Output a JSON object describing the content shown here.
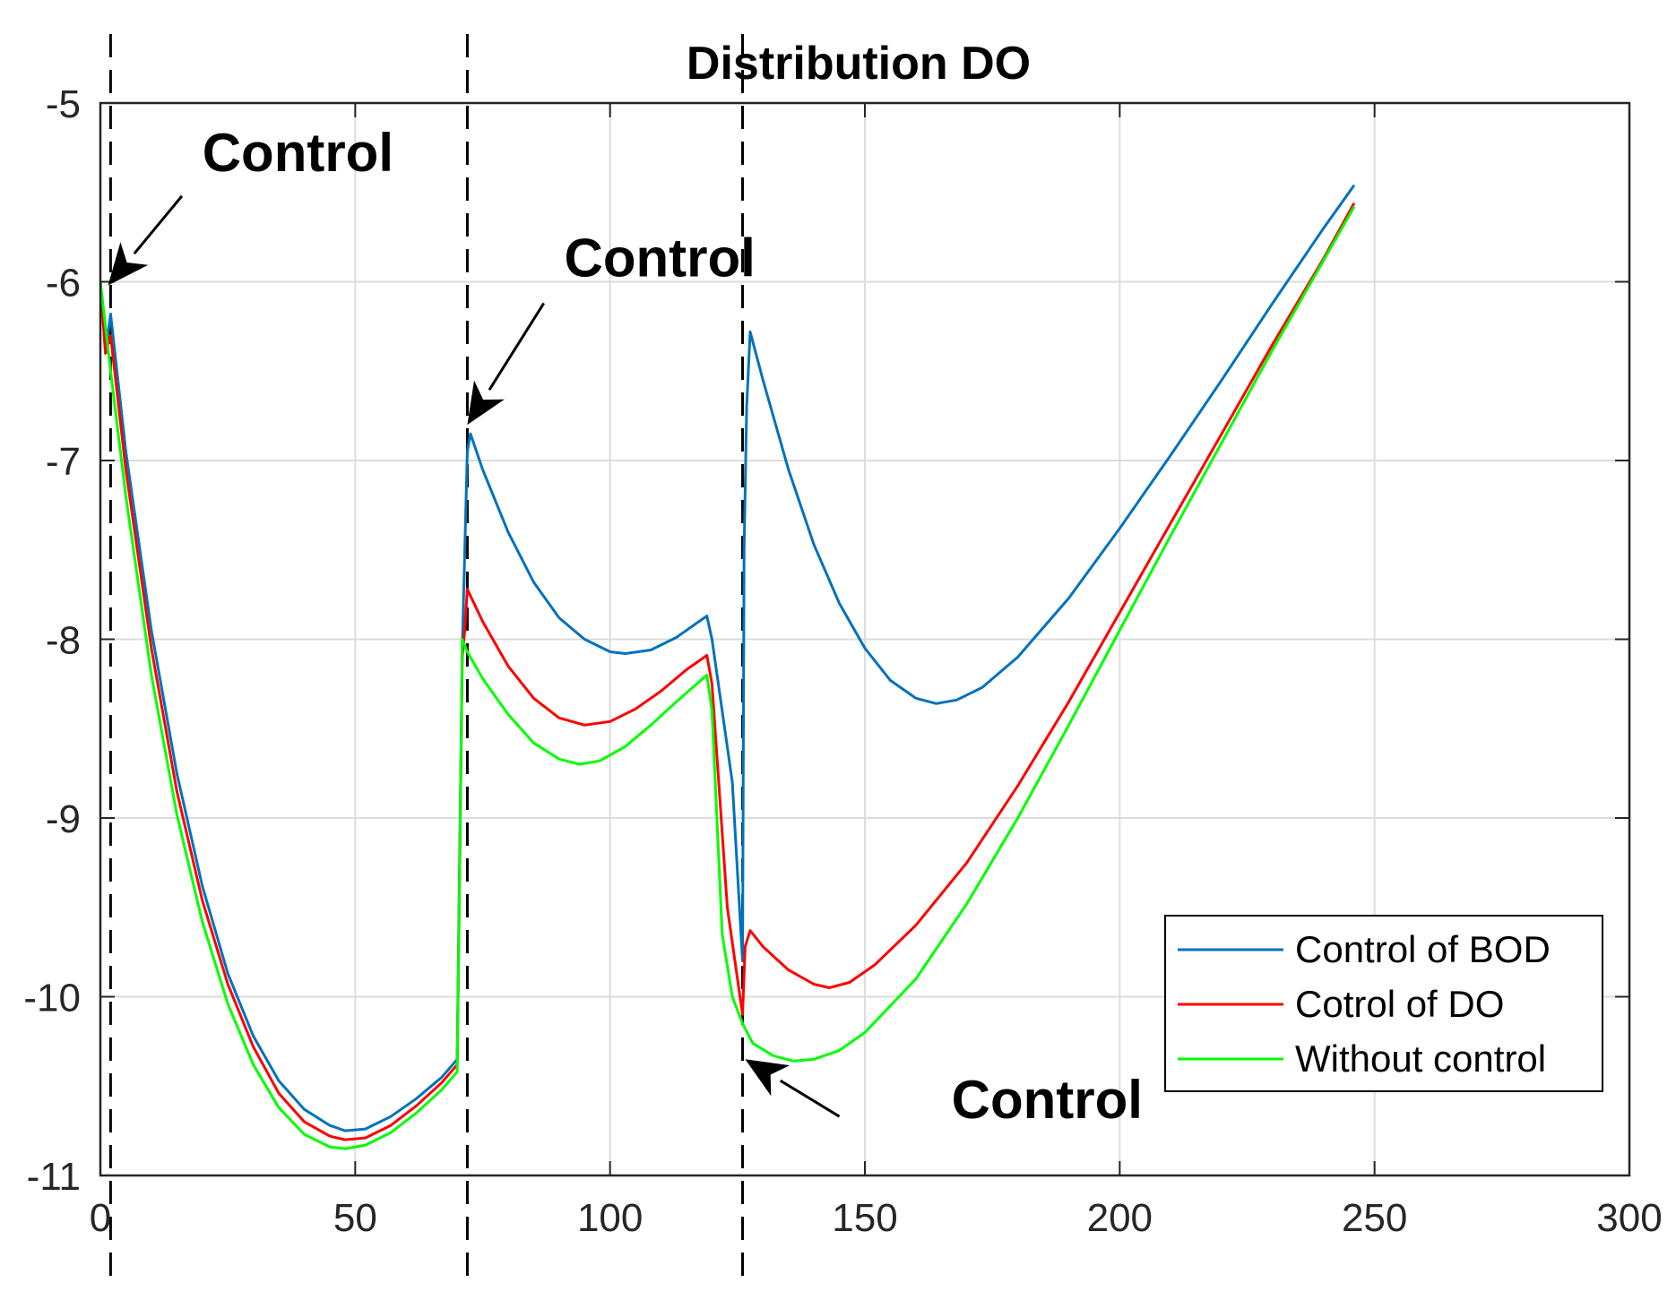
{
  "chart_data": {
    "type": "line",
    "title": "Distribution DO",
    "xlabel": "",
    "ylabel": "",
    "xlim": [
      0,
      300
    ],
    "ylim": [
      -11,
      -5
    ],
    "xticks": [
      0,
      50,
      100,
      150,
      200,
      250,
      300
    ],
    "yticks": [
      -11,
      -10,
      -9,
      -8,
      -7,
      -6,
      -5
    ],
    "xtick_labels": [
      "0",
      "50",
      "100",
      "150",
      "200",
      "250",
      "300"
    ],
    "ytick_labels": [
      "-11",
      "-10",
      "-9",
      "-8",
      "-7",
      "-6",
      "-5"
    ],
    "grid": true,
    "legend_position": "bottom-right",
    "series": [
      {
        "name": "Control of BOD",
        "color": "#0072BD",
        "points": [
          [
            0,
            -6.0
          ],
          [
            1,
            -6.4
          ],
          [
            2,
            -6.18
          ],
          [
            5,
            -6.95
          ],
          [
            10,
            -7.95
          ],
          [
            15,
            -8.75
          ],
          [
            20,
            -9.38
          ],
          [
            25,
            -9.87
          ],
          [
            30,
            -10.22
          ],
          [
            35,
            -10.47
          ],
          [
            40,
            -10.63
          ],
          [
            45,
            -10.72
          ],
          [
            48,
            -10.75
          ],
          [
            52,
            -10.74
          ],
          [
            57,
            -10.67
          ],
          [
            62,
            -10.57
          ],
          [
            67,
            -10.45
          ],
          [
            70,
            -10.35
          ],
          [
            70.5,
            -9.2
          ],
          [
            71,
            -8.05
          ],
          [
            72,
            -6.95
          ],
          [
            72.6,
            -6.85
          ],
          [
            75,
            -7.05
          ],
          [
            80,
            -7.4
          ],
          [
            85,
            -7.68
          ],
          [
            90,
            -7.88
          ],
          [
            95,
            -8.0
          ],
          [
            100,
            -8.07
          ],
          [
            103,
            -8.08
          ],
          [
            108,
            -8.06
          ],
          [
            113,
            -7.99
          ],
          [
            117,
            -7.91
          ],
          [
            119,
            -7.87
          ],
          [
            120,
            -8.0
          ],
          [
            124,
            -8.8
          ],
          [
            126,
            -9.8
          ],
          [
            126.3,
            -7.5
          ],
          [
            126.8,
            -6.7
          ],
          [
            127.5,
            -6.28
          ],
          [
            130,
            -6.55
          ],
          [
            135,
            -7.05
          ],
          [
            140,
            -7.47
          ],
          [
            145,
            -7.8
          ],
          [
            150,
            -8.05
          ],
          [
            155,
            -8.23
          ],
          [
            160,
            -8.33
          ],
          [
            164,
            -8.36
          ],
          [
            168,
            -8.34
          ],
          [
            173,
            -8.27
          ],
          [
            180,
            -8.1
          ],
          [
            190,
            -7.77
          ],
          [
            200,
            -7.38
          ],
          [
            210,
            -6.97
          ],
          [
            220,
            -6.55
          ],
          [
            230,
            -6.12
          ],
          [
            240,
            -5.7
          ],
          [
            246,
            -5.46
          ]
        ]
      },
      {
        "name": "Cotrol of DO",
        "color": "#FF0000",
        "points": [
          [
            0,
            -6.0
          ],
          [
            1,
            -6.4
          ],
          [
            2,
            -6.3
          ],
          [
            5,
            -7.05
          ],
          [
            10,
            -8.05
          ],
          [
            15,
            -8.85
          ],
          [
            20,
            -9.46
          ],
          [
            25,
            -9.93
          ],
          [
            30,
            -10.28
          ],
          [
            35,
            -10.54
          ],
          [
            40,
            -10.7
          ],
          [
            45,
            -10.78
          ],
          [
            48,
            -10.8
          ],
          [
            52,
            -10.79
          ],
          [
            57,
            -10.72
          ],
          [
            62,
            -10.61
          ],
          [
            67,
            -10.48
          ],
          [
            70,
            -10.38
          ],
          [
            70.5,
            -9.3
          ],
          [
            71,
            -8.1
          ],
          [
            71.5,
            -7.95
          ],
          [
            72,
            -7.72
          ],
          [
            75,
            -7.9
          ],
          [
            80,
            -8.15
          ],
          [
            85,
            -8.33
          ],
          [
            90,
            -8.44
          ],
          [
            95,
            -8.48
          ],
          [
            100,
            -8.46
          ],
          [
            105,
            -8.39
          ],
          [
            110,
            -8.29
          ],
          [
            115,
            -8.17
          ],
          [
            119,
            -8.09
          ],
          [
            120,
            -8.25
          ],
          [
            123,
            -9.5
          ],
          [
            126,
            -10.1
          ],
          [
            126.5,
            -9.72
          ],
          [
            127.5,
            -9.63
          ],
          [
            130,
            -9.72
          ],
          [
            135,
            -9.85
          ],
          [
            140,
            -9.93
          ],
          [
            143,
            -9.95
          ],
          [
            147,
            -9.92
          ],
          [
            152,
            -9.82
          ],
          [
            160,
            -9.6
          ],
          [
            170,
            -9.25
          ],
          [
            180,
            -8.82
          ],
          [
            190,
            -8.35
          ],
          [
            200,
            -7.85
          ],
          [
            210,
            -7.35
          ],
          [
            220,
            -6.85
          ],
          [
            230,
            -6.35
          ],
          [
            240,
            -5.87
          ],
          [
            246,
            -5.56
          ]
        ]
      },
      {
        "name": "Without control",
        "color": "#00FF00",
        "points": [
          [
            0,
            -6.0
          ],
          [
            2,
            -6.5
          ],
          [
            5,
            -7.2
          ],
          [
            10,
            -8.2
          ],
          [
            15,
            -8.98
          ],
          [
            20,
            -9.58
          ],
          [
            25,
            -10.04
          ],
          [
            30,
            -10.38
          ],
          [
            35,
            -10.62
          ],
          [
            40,
            -10.77
          ],
          [
            45,
            -10.84
          ],
          [
            48,
            -10.85
          ],
          [
            52,
            -10.83
          ],
          [
            57,
            -10.76
          ],
          [
            62,
            -10.65
          ],
          [
            67,
            -10.52
          ],
          [
            70,
            -10.42
          ],
          [
            70.5,
            -9.3
          ],
          [
            71,
            -8.0
          ],
          [
            72,
            -8.07
          ],
          [
            75,
            -8.22
          ],
          [
            80,
            -8.42
          ],
          [
            85,
            -8.58
          ],
          [
            90,
            -8.67
          ],
          [
            94,
            -8.7
          ],
          [
            98,
            -8.68
          ],
          [
            103,
            -8.6
          ],
          [
            108,
            -8.48
          ],
          [
            113,
            -8.35
          ],
          [
            119,
            -8.2
          ],
          [
            120,
            -8.4
          ],
          [
            122,
            -9.65
          ],
          [
            124,
            -10.0
          ],
          [
            126,
            -10.15
          ],
          [
            128,
            -10.26
          ],
          [
            132,
            -10.33
          ],
          [
            136,
            -10.36
          ],
          [
            140,
            -10.35
          ],
          [
            145,
            -10.3
          ],
          [
            150,
            -10.2
          ],
          [
            160,
            -9.9
          ],
          [
            170,
            -9.48
          ],
          [
            180,
            -9.0
          ],
          [
            190,
            -8.48
          ],
          [
            200,
            -7.95
          ],
          [
            210,
            -7.42
          ],
          [
            220,
            -6.9
          ],
          [
            230,
            -6.38
          ],
          [
            240,
            -5.88
          ],
          [
            246,
            -5.58
          ]
        ]
      }
    ],
    "vlines": [
      2,
      72,
      126
    ],
    "annotations": [
      {
        "text": "Control",
        "text_at": [
          20,
          -5.38
        ],
        "arrow_from": [
          16,
          -5.52
        ],
        "arrow_to": [
          1.5,
          -6.02
        ]
      },
      {
        "text": "Control",
        "text_at": [
          91,
          -5.97
        ],
        "arrow_from": [
          87,
          -6.12
        ],
        "arrow_to": [
          72,
          -6.8
        ]
      },
      {
        "text": "Control",
        "text_at": [
          167,
          -10.68
        ],
        "arrow_from": [
          145,
          -10.67
        ],
        "arrow_to": [
          126.5,
          -10.35
        ]
      }
    ]
  }
}
